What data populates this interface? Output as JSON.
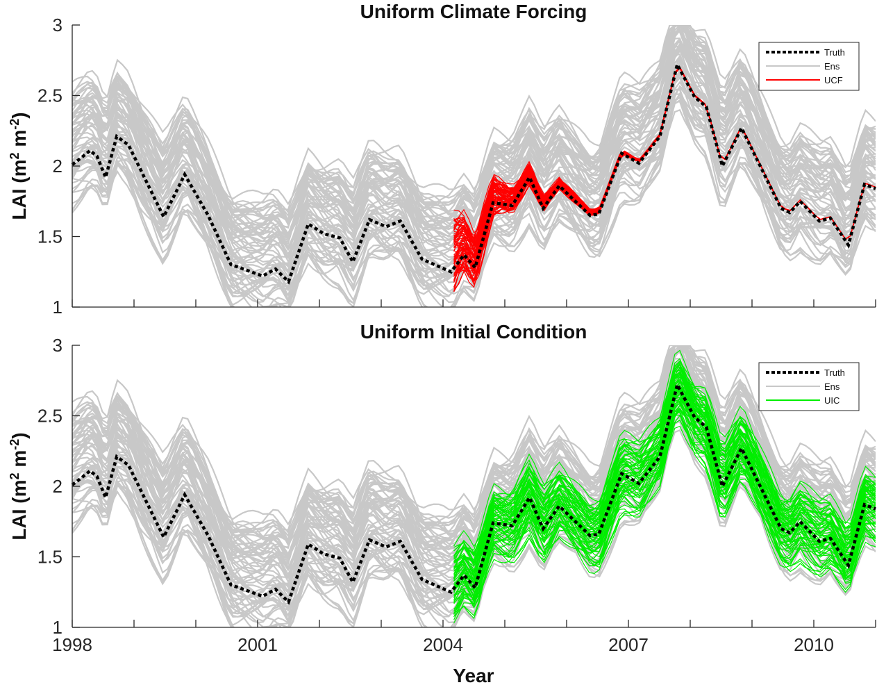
{
  "chart_data": [
    {
      "type": "line",
      "title": "Uniform Climate Forcing",
      "xlabel": "",
      "ylabel": "LAI (m^2 m^-2)",
      "xlim": [
        1998,
        2011
      ],
      "ylim": [
        1,
        3
      ],
      "yticks": [
        1,
        1.5,
        2,
        2.5,
        3
      ],
      "ytick_labels": [
        "1",
        "1.5",
        "2",
        "2.5",
        "3"
      ],
      "xticks": [
        1998,
        1999,
        2000,
        2001,
        2002,
        2003,
        2004,
        2005,
        2006,
        2007,
        2008,
        2009,
        2010,
        2011
      ],
      "xtick_labels": [],
      "grid": false,
      "legend_position": "top-right",
      "legend": [
        {
          "label": "Truth",
          "style": "dotted",
          "color": "#000000"
        },
        {
          "label": "Ens",
          "style": "solid",
          "color": "#c8c8c8"
        },
        {
          "label": "UCF",
          "style": "solid",
          "color": "#ff0000"
        }
      ],
      "highlight_series": "UCF",
      "highlight_color": "#ff0000",
      "highlight_start": 2004.1,
      "highlight_converges_to_truth": true,
      "ensemble_members_approx": 100
    },
    {
      "type": "line",
      "title": "Uniform Initial Condition",
      "xlabel": "Year",
      "ylabel": "LAI (m^2 m^-2)",
      "xlim": [
        1998,
        2011
      ],
      "ylim": [
        1,
        3
      ],
      "yticks": [
        1,
        1.5,
        2,
        2.5,
        3
      ],
      "ytick_labels": [
        "1",
        "1.5",
        "2",
        "2.5",
        "3"
      ],
      "xticks": [
        1998,
        1999,
        2000,
        2001,
        2002,
        2003,
        2004,
        2005,
        2006,
        2007,
        2008,
        2009,
        2010,
        2011
      ],
      "xtick_labels": [
        "1998",
        "2001",
        "2004",
        "2007",
        "2010"
      ],
      "xtick_label_years": [
        1998,
        2001,
        2004,
        2007,
        2010
      ],
      "grid": false,
      "legend_position": "top-right",
      "legend": [
        {
          "label": "Truth",
          "style": "dotted",
          "color": "#000000"
        },
        {
          "label": "Ens",
          "style": "solid",
          "color": "#c8c8c8"
        },
        {
          "label": "UIC",
          "style": "solid",
          "color": "#00ee00"
        }
      ],
      "highlight_series": "UIC",
      "highlight_color": "#00ee00",
      "highlight_start": 2004.1,
      "highlight_converges_to_truth": false,
      "ensemble_members_approx": 100
    }
  ],
  "truth": {
    "x": [
      1998.0,
      1998.15,
      1998.29,
      1998.4,
      1998.54,
      1998.72,
      1998.91,
      1999.48,
      1999.82,
      2000.2,
      2000.57,
      2000.71,
      2001.08,
      2001.29,
      2001.5,
      2001.82,
      2002.07,
      2002.33,
      2002.54,
      2002.81,
      2003.08,
      2003.31,
      2003.66,
      2004.13,
      2004.34,
      2004.52,
      2004.81,
      2005.12,
      2005.4,
      2005.62,
      2005.88,
      2006.38,
      2006.52,
      2006.89,
      2007.17,
      2007.51,
      2007.79,
      2008.07,
      2008.26,
      2008.52,
      2008.83,
      2009.47,
      2009.61,
      2009.78,
      2010.09,
      2010.27,
      2010.56,
      2010.82,
      2011.0
    ],
    "y": [
      2.01,
      2.06,
      2.11,
      2.07,
      1.92,
      2.21,
      2.15,
      1.64,
      1.94,
      1.65,
      1.3,
      1.28,
      1.22,
      1.27,
      1.18,
      1.59,
      1.52,
      1.49,
      1.32,
      1.62,
      1.57,
      1.61,
      1.34,
      1.25,
      1.37,
      1.28,
      1.74,
      1.72,
      1.92,
      1.7,
      1.86,
      1.65,
      1.66,
      2.09,
      2.02,
      2.21,
      2.72,
      2.49,
      2.42,
      2.0,
      2.27,
      1.7,
      1.67,
      1.75,
      1.61,
      1.63,
      1.44,
      1.87,
      1.84
    ]
  },
  "ensemble_spread": {
    "upper_offset": 0.45,
    "lower_offset": -0.45
  }
}
